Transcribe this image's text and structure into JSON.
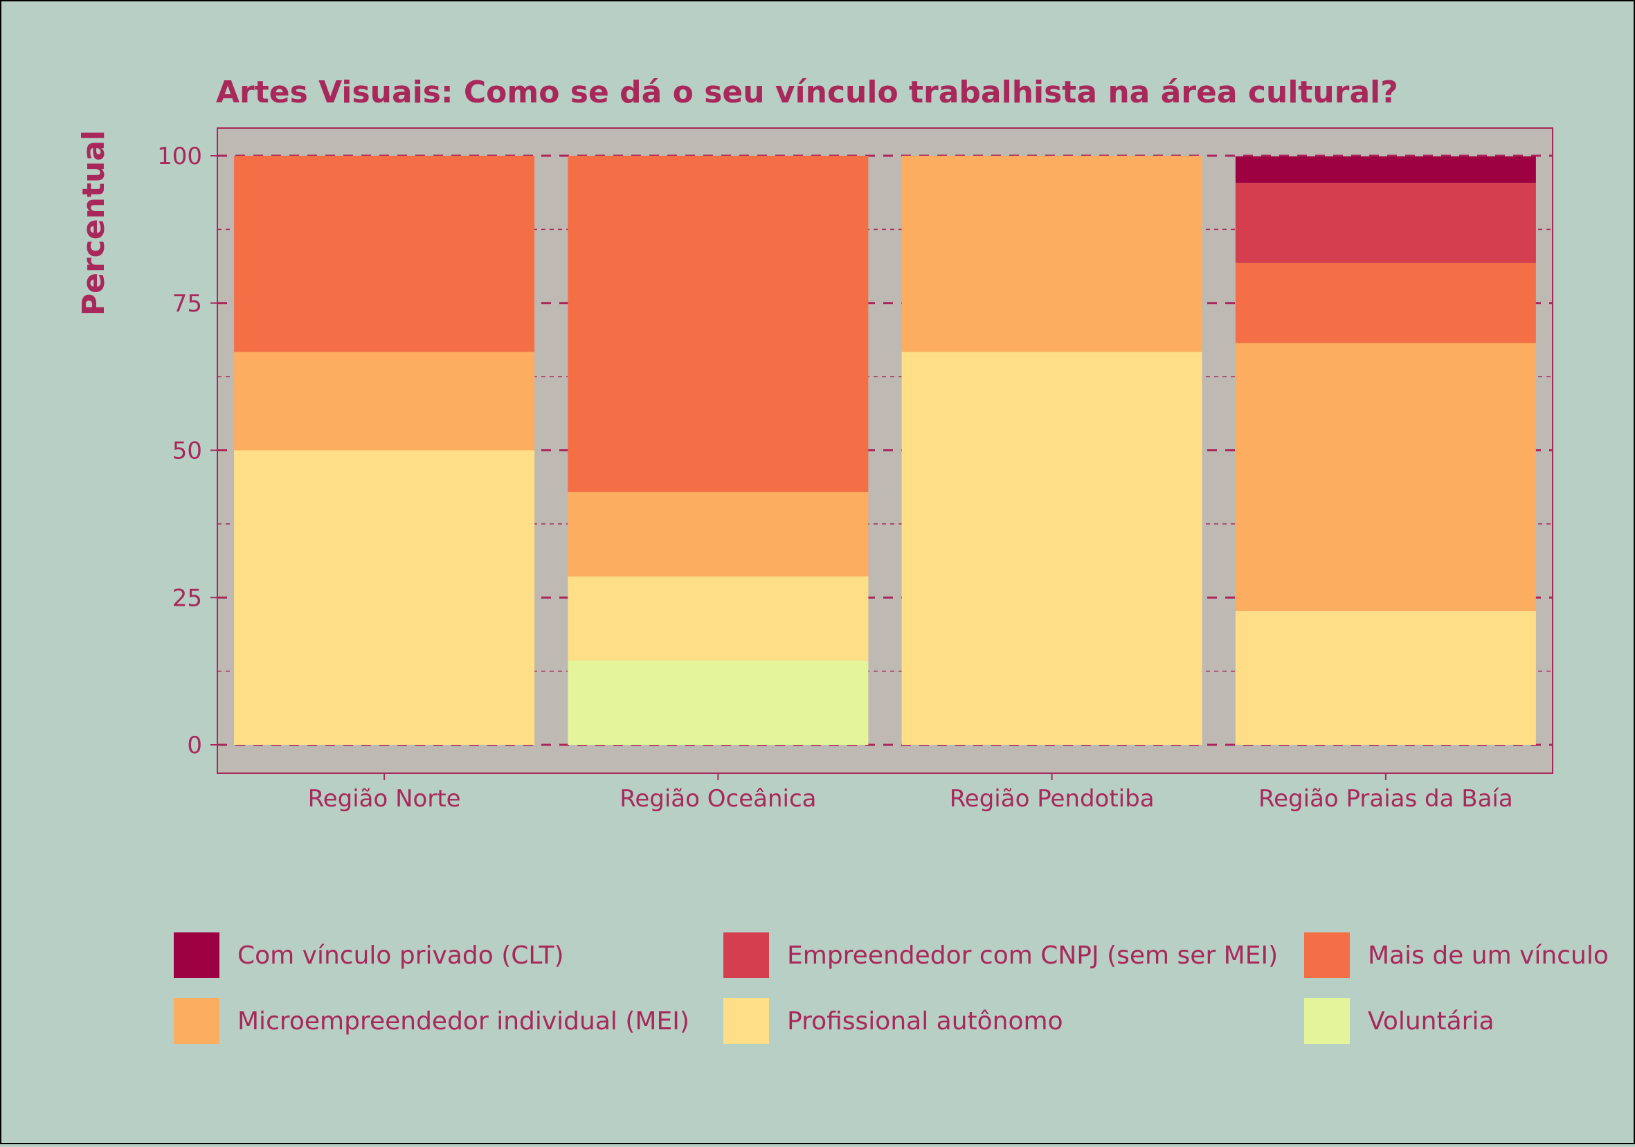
{
  "colors": {
    "background": "#b8cfc5",
    "panel": "#beb9b3",
    "text": "#a8285a",
    "grid": "#a8285a",
    "frame": "#000000"
  },
  "chart_data": {
    "type": "bar",
    "stacked": true,
    "title": "Artes Visuais: Como se dá o seu vínculo trabalhista na área cultural?",
    "xlabel": "",
    "ylabel": "Percentual",
    "ylim": [
      0,
      100
    ],
    "yticks": [
      0,
      25,
      50,
      75,
      100
    ],
    "grid": true,
    "legend_position": "bottom",
    "categories": [
      "Região Norte",
      "Região Oceânica",
      "Região Pendotiba",
      "Região Praias da Baía"
    ],
    "series": [
      {
        "name": "Voluntária",
        "color": "#e3f49a",
        "values": [
          0,
          14.3,
          0,
          0
        ]
      },
      {
        "name": "Profissional autônomo",
        "color": "#fedf88",
        "values": [
          50,
          14.3,
          66.7,
          22.7
        ]
      },
      {
        "name": "Microempreendedor individual  (MEI)",
        "color": "#fdad5f",
        "values": [
          16.7,
          14.3,
          33.3,
          45.5
        ]
      },
      {
        "name": "Mais de um vínculo",
        "color": "#f46f45",
        "values": [
          33.3,
          57.1,
          0,
          13.6
        ]
      },
      {
        "name": "Empreendedor com CNPJ (sem ser MEI)",
        "color": "#d53e4f",
        "values": [
          0,
          0,
          0,
          13.6
        ]
      },
      {
        "name": "Com vínculo privado (CLT)",
        "color": "#9e0142",
        "values": [
          0,
          0,
          0,
          4.5
        ]
      }
    ],
    "legend_order": [
      "Com vínculo privado (CLT)",
      "Empreendedor com CNPJ (sem ser MEI)",
      "Mais de um vínculo",
      "Microempreendedor individual  (MEI)",
      "Profissional autônomo",
      "Voluntária"
    ]
  }
}
